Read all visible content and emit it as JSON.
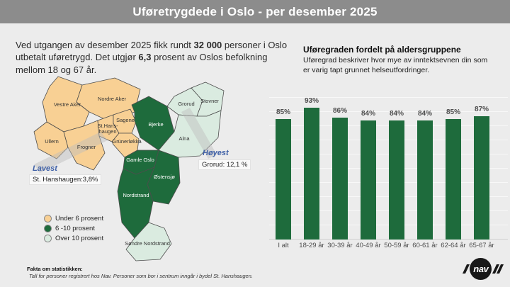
{
  "header": {
    "title": "Uføretrygdede i Oslo - per desember 2025"
  },
  "intro": {
    "part1": "Ved utgangen av desember 2025 fikk rundt ",
    "bold1": "32 000",
    "part2": " personer i Oslo utbetalt uføretrygd. Det utgjør ",
    "bold2": "6,3",
    "part3": " prosent av Oslos befolkning mellom 18 og 67 år."
  },
  "map": {
    "colors": {
      "under6": "#F8D094",
      "mid": "#1E6B3C",
      "over10": "#DAEBE0",
      "border": "#4d4d4d"
    },
    "districts": [
      {
        "id": "vestre-aker",
        "label": "Vestre Aker",
        "category": "under6"
      },
      {
        "id": "nordre-aker",
        "label": "Nordre Aker",
        "category": "under6"
      },
      {
        "id": "ullern",
        "label": "Ullern",
        "category": "under6"
      },
      {
        "id": "frogner",
        "label": "Frogner",
        "category": "under6"
      },
      {
        "id": "st-hanshaugen",
        "label": "St.Hans-\nhaugen",
        "category": "under6"
      },
      {
        "id": "sagene",
        "label": "Sagene",
        "category": "under6"
      },
      {
        "id": "grunerlokka",
        "label": "Grünerløkka",
        "category": "under6"
      },
      {
        "id": "bjerke",
        "label": "Bjerke",
        "category": "mid"
      },
      {
        "id": "grorud",
        "label": "Grorud",
        "category": "over10"
      },
      {
        "id": "stovner",
        "label": "Stovner",
        "category": "over10"
      },
      {
        "id": "alna",
        "label": "Alna",
        "category": "over10"
      },
      {
        "id": "gamle-oslo",
        "label": "Gamle Oslo",
        "category": "mid"
      },
      {
        "id": "ostensjo",
        "label": "Østensjø",
        "category": "mid"
      },
      {
        "id": "nordstrand",
        "label": "Nordstrand",
        "category": "mid"
      },
      {
        "id": "sondre-nordstrand",
        "label": "Søndre Nordstrand",
        "category": "over10"
      }
    ],
    "annotations": {
      "accent": "#3D5FA6",
      "lowest_label": "Lavest",
      "lowest_value": "St. Hanshaugen:3,8%",
      "highest_label": "Høyest",
      "highest_value": "Grorud: 12,1 %"
    }
  },
  "legend": {
    "items": [
      {
        "category": "under6",
        "label": "Under 6 prosent"
      },
      {
        "category": "mid",
        "label": "6 -10 prosent"
      },
      {
        "category": "over10",
        "label": "Over 10 prosent"
      }
    ]
  },
  "footer": {
    "heading": "Fakta om statistikken:",
    "note": "Tall for personer registrert hos Nav. Personer som bor i sentrum inngår i bydel St. Hanshaugen."
  },
  "chart": {
    "title": "Uføregraden fordelt på aldersgruppene",
    "subtitle": "Uføregrad beskriver hvor mye av inntektsevnen din som er varig tapt grunnet helseutfordringer.",
    "bar_color": "#1E6B3C"
  },
  "chart_data": {
    "type": "bar",
    "title": "Uføregraden fordelt på aldersgruppene",
    "categories": [
      "I alt",
      "18-29 år",
      "30-39 år",
      "40-49 år",
      "50-59 år",
      "60-61 år",
      "62-64 år",
      "65-67 år"
    ],
    "values": [
      85,
      93,
      86,
      84,
      84,
      84,
      85,
      87
    ],
    "value_labels": [
      "85%",
      "93%",
      "86%",
      "84%",
      "84%",
      "84%",
      "85%",
      "87%"
    ],
    "xlabel": "",
    "ylabel": "",
    "ylim": [
      0,
      100
    ],
    "grid": true,
    "legend": "none"
  },
  "logo": {
    "text": "nav"
  }
}
